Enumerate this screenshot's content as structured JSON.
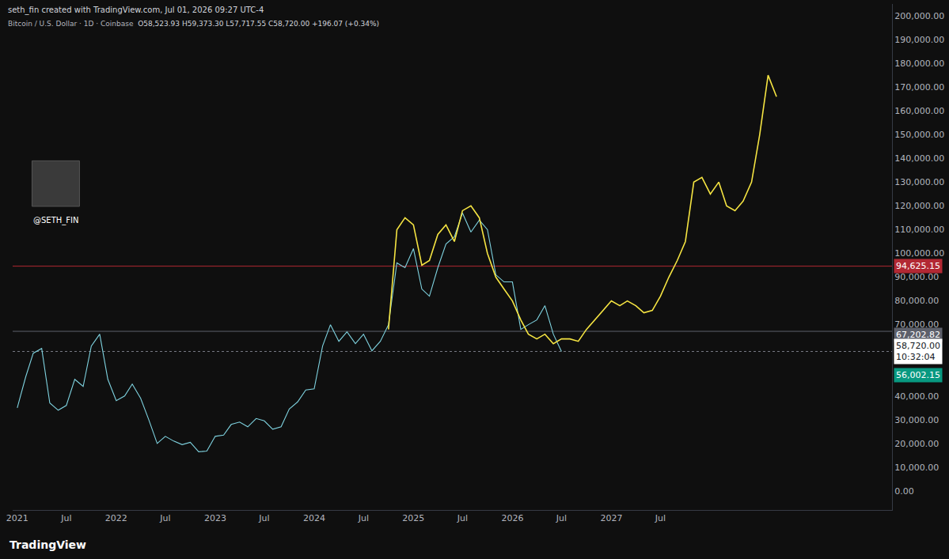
{
  "chart_data": {
    "type": "line",
    "credit": "seth_fin created with TradingView.com, Jul 01, 2026 09:27 UTC-4",
    "title": "Bitcoin / U.S. Dollar · 1D · Coinbase",
    "subtitle": "O58,523.93 H59,373.30 L57,717.55 C58,720.00 +196.07 (+0.34%)",
    "watermark": "@SETH_FIN",
    "footer": "TradingView",
    "grid": false,
    "xlim": [
      "2020-12-15",
      "2029-11-01"
    ],
    "xticks": [
      {
        "value": "2021-01-01",
        "label": "2021"
      },
      {
        "value": "2021-07-01",
        "label": "Jul"
      },
      {
        "value": "2022-01-01",
        "label": "2022"
      },
      {
        "value": "2022-07-01",
        "label": "Jul"
      },
      {
        "value": "2023-01-01",
        "label": "2023"
      },
      {
        "value": "2023-07-01",
        "label": "Jul"
      },
      {
        "value": "2024-01-01",
        "label": "2024"
      },
      {
        "value": "2024-07-01",
        "label": "Jul"
      },
      {
        "value": "2025-01-01",
        "label": "2025"
      },
      {
        "value": "2025-07-01",
        "label": "Jul"
      },
      {
        "value": "2026-01-01",
        "label": "2026"
      },
      {
        "value": "2026-07-01",
        "label": "Jul"
      },
      {
        "value": "2027-01-01",
        "label": "2027"
      },
      {
        "value": "2027-07-01",
        "label": "Jul"
      }
    ],
    "ylim": [
      -8000,
      205000
    ],
    "yticks": [
      {
        "value": 0,
        "label": "0.00"
      },
      {
        "value": 10000,
        "label": "10,000.00"
      },
      {
        "value": 20000,
        "label": "20,000.00"
      },
      {
        "value": 30000,
        "label": "30,000.00"
      },
      {
        "value": 40000,
        "label": "40,000.00"
      },
      {
        "value": 70000,
        "label": "70,000.00"
      },
      {
        "value": 80000,
        "label": "80,000.00"
      },
      {
        "value": 90000,
        "label": "90,000.00"
      },
      {
        "value": 100000,
        "label": "100,000.00"
      },
      {
        "value": 110000,
        "label": "110,000.00"
      },
      {
        "value": 120000,
        "label": "120,000.00"
      },
      {
        "value": 130000,
        "label": "130,000.00"
      },
      {
        "value": 140000,
        "label": "140,000.00"
      },
      {
        "value": 150000,
        "label": "150,000.00"
      },
      {
        "value": 160000,
        "label": "160,000.00"
      },
      {
        "value": 170000,
        "label": "170,000.00"
      },
      {
        "value": 180000,
        "label": "180,000.00"
      },
      {
        "value": 190000,
        "label": "190,000.00"
      },
      {
        "value": 200000,
        "label": "200,000.00"
      }
    ],
    "series": [
      {
        "color": "#7fd3e0",
        "x": [
          "2021-01",
          "2021-02",
          "2021-03",
          "2021-04",
          "2021-05",
          "2021-06",
          "2021-07",
          "2021-08",
          "2021-09",
          "2021-10",
          "2021-11",
          "2021-12",
          "2022-01",
          "2022-02",
          "2022-03",
          "2022-04",
          "2022-05",
          "2022-06",
          "2022-07",
          "2022-08",
          "2022-09",
          "2022-10",
          "2022-11",
          "2022-12",
          "2023-01",
          "2023-02",
          "2023-03",
          "2023-04",
          "2023-05",
          "2023-06",
          "2023-07",
          "2023-08",
          "2023-09",
          "2023-10",
          "2023-11",
          "2023-12",
          "2024-01",
          "2024-02",
          "2024-03",
          "2024-04",
          "2024-05",
          "2024-06",
          "2024-07",
          "2024-08",
          "2024-09",
          "2024-10",
          "2024-11",
          "2024-12",
          "2025-01",
          "2025-02",
          "2025-03",
          "2025-04",
          "2025-05",
          "2025-06",
          "2025-07",
          "2025-08",
          "2025-09",
          "2025-10",
          "2025-11",
          "2025-12",
          "2026-01",
          "2026-02",
          "2026-03",
          "2026-04",
          "2026-05",
          "2026-06",
          "2026-07"
        ],
        "values": [
          35000,
          48000,
          58000,
          60000,
          37000,
          34000,
          36000,
          47000,
          44000,
          61000,
          66000,
          47000,
          38000,
          40000,
          45000,
          39000,
          30000,
          20000,
          23000,
          21000,
          19500,
          20500,
          16500,
          16800,
          23000,
          23500,
          28000,
          29000,
          27000,
          30500,
          29500,
          26000,
          27000,
          34500,
          37500,
          42500,
          43000,
          61000,
          70000,
          63000,
          67000,
          62000,
          66000,
          59000,
          63000,
          70000,
          96000,
          94000,
          102000,
          85000,
          82000,
          94000,
          104000,
          107000,
          117000,
          109000,
          114000,
          110000,
          91000,
          88000,
          88000,
          68000,
          70000,
          72000,
          78000,
          66000,
          58720
        ]
      },
      {
        "color": "#f5e442",
        "x": [
          "2024-10",
          "2024-11",
          "2024-12",
          "2025-01",
          "2025-02",
          "2025-03",
          "2025-04",
          "2025-05",
          "2025-06",
          "2025-07",
          "2025-08",
          "2025-09",
          "2025-10",
          "2025-11",
          "2025-12",
          "2026-01",
          "2026-02",
          "2026-03",
          "2026-04",
          "2026-05",
          "2026-06",
          "2026-07",
          "2026-08",
          "2026-09",
          "2026-10",
          "2026-11",
          "2026-12",
          "2027-01",
          "2027-02",
          "2027-03",
          "2027-04",
          "2027-05",
          "2027-06",
          "2027-07",
          "2027-08",
          "2027-09",
          "2027-10",
          "2027-11",
          "2027-12",
          "2028-01",
          "2028-02",
          "2028-03",
          "2028-04",
          "2028-05",
          "2028-06",
          "2028-07",
          "2028-08",
          "2028-09"
        ],
        "values": [
          68000,
          110000,
          115000,
          112000,
          95000,
          97000,
          108000,
          112000,
          105000,
          118000,
          120000,
          115000,
          100000,
          90000,
          85000,
          80000,
          72000,
          66000,
          64000,
          66000,
          62000,
          64000,
          64000,
          63000,
          68000,
          72000,
          76000,
          80000,
          78000,
          80000,
          78000,
          75000,
          76000,
          82000,
          90000,
          97000,
          105000,
          130000,
          132000,
          125000,
          130000,
          120000,
          118000,
          122000,
          130000,
          150000,
          175000,
          166000
        ]
      }
    ],
    "price_labels": [
      {
        "value": 94625.15,
        "label": "94,625.15",
        "color": "#b22833",
        "line_style": "solid"
      },
      {
        "value": 67202.82,
        "label": "67,202.82",
        "color": "#5d606b",
        "line_style": "solid"
      },
      {
        "value": 58720.0,
        "label": "58,720.00",
        "timer": "10:32:04",
        "color": "#ffffff",
        "line_style": "dotted"
      },
      {
        "value": 56002.15,
        "label": "56,002.15",
        "color": "#089981"
      }
    ]
  }
}
